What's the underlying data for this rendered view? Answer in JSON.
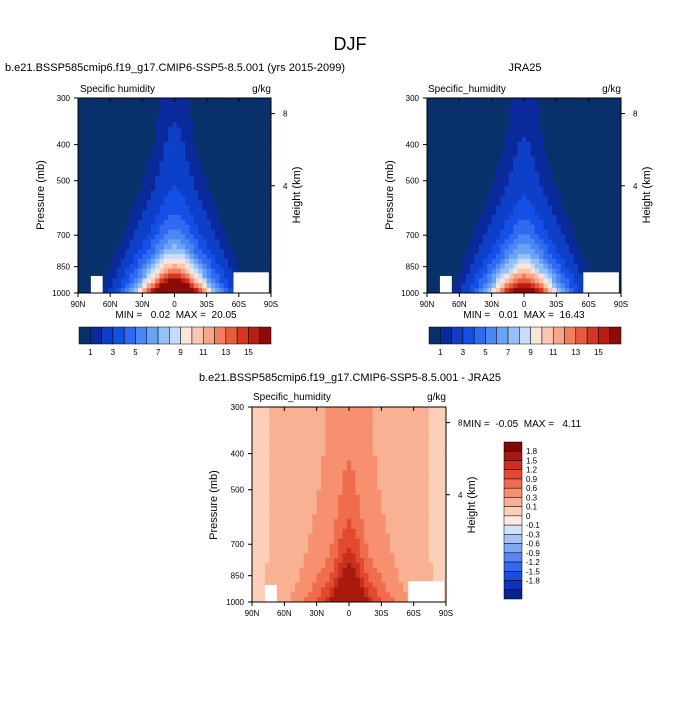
{
  "figure": {
    "title": "DJF"
  },
  "palettes": {
    "humidity": [
      "#08306b",
      "#0a2a9c",
      "#0d3fc8",
      "#1550e6",
      "#2f6af0",
      "#4a86f4",
      "#6aa2f6",
      "#95c0f8",
      "#c7dcfa",
      "#fbe4d8",
      "#f9c7b2",
      "#f7a688",
      "#f2805e",
      "#ea5a3c",
      "#d63621",
      "#b81e12",
      "#8c0b06"
    ],
    "difference": [
      "#08238b",
      "#0d33b8",
      "#1a4ddf",
      "#3468f0",
      "#5687f3",
      "#7ea7f6",
      "#a7c4f8",
      "#d4e3fb",
      "#fde9dd",
      "#fbcfb8",
      "#f9b193",
      "#f6906f",
      "#f06c4d",
      "#e2492f",
      "#c9301d",
      "#a81a10",
      "#7d0804"
    ]
  },
  "chart_data": [
    {
      "type": "heatmap",
      "title": "b.e21.BSSP585cmip6.f19_g17.CMIP6-SSP5-8.5.001 (yrs 2015-2099)",
      "variable_label": "Specific humidity",
      "units": "g/kg",
      "ylabel": "Pressure (mb)",
      "y2label": "Height (km)",
      "x_ticks": [
        "90N",
        "60N",
        "30N",
        "0",
        "30S",
        "60S",
        "90S"
      ],
      "y_ticks": [
        "300",
        "400",
        "500",
        "700",
        "850",
        "1000"
      ],
      "y2_ticks": [
        "8",
        "4"
      ],
      "x_range": [
        90,
        -90
      ],
      "y_range_mb": [
        1000,
        300
      ],
      "stats": "MIN =   0.02  MAX =  20.05",
      "min": 0.02,
      "max": 20.05,
      "field": {
        "peak": 20.05,
        "peak_lat": 0,
        "surface_width_deg": 36,
        "pressure_scale_mb": 160,
        "upper_branch_amp": 3.5,
        "upper_branch_width_deg": 16
      },
      "colorbar": {
        "labels": [
          "1",
          "3",
          "5",
          "7",
          "9",
          "11",
          "13",
          "15"
        ],
        "levels": [
          0.5,
          1,
          2,
          3,
          4,
          5,
          6,
          7,
          8,
          9,
          10,
          11,
          12,
          13,
          14,
          15
        ]
      }
    },
    {
      "type": "heatmap",
      "title": "",
      "variable_label": "Specific_humidity",
      "units": "g/kg",
      "ylabel": "Pressure (mb)",
      "y2label": "Height (km)",
      "x_ticks": [
        "90N",
        "60N",
        "30N",
        "0",
        "30S",
        "60S",
        "90S"
      ],
      "y_ticks": [
        "300",
        "400",
        "500",
        "700",
        "850",
        "1000"
      ],
      "y2_ticks": [
        "8",
        "4"
      ],
      "x_range": [
        90,
        -90
      ],
      "y_range_mb": [
        1000,
        300
      ],
      "subtitle": "JRA25",
      "stats": "MIN =   0.01  MAX =  16.43",
      "min": 0.01,
      "max": 16.43,
      "field": {
        "peak": 16.43,
        "peak_lat": 0,
        "surface_width_deg": 36,
        "pressure_scale_mb": 170,
        "upper_branch_amp": 2.5,
        "upper_branch_width_deg": 15
      },
      "colorbar": {
        "labels": [
          "1",
          "3",
          "5",
          "7",
          "9",
          "11",
          "13",
          "15"
        ],
        "levels": [
          0.5,
          1,
          2,
          3,
          4,
          5,
          6,
          7,
          8,
          9,
          10,
          11,
          12,
          13,
          14,
          15
        ]
      }
    },
    {
      "type": "heatmap",
      "title": "b.e21.BSSP585cmip6.f19_g17.CMIP6-SSP5-8.5.001 - JRA25",
      "variable_label": "Specific_humidity",
      "units": "g/kg",
      "ylabel": "Pressure (mb)",
      "y2label": "Height (km)",
      "x_ticks": [
        "90N",
        "60N",
        "30N",
        "0",
        "30S",
        "60S",
        "90S"
      ],
      "y_ticks": [
        "300",
        "400",
        "500",
        "700",
        "850",
        "1000"
      ],
      "y2_ticks": [
        "8",
        "4"
      ],
      "x_range": [
        90,
        -90
      ],
      "y_range_mb": [
        1000,
        300
      ],
      "stats": "MIN =  -0.05  MAX =   4.11",
      "min": -0.05,
      "max": 4.11,
      "field": {
        "peak": 4.11,
        "peak_lat": 0,
        "surface_width_deg": 40,
        "pressure_scale_mb": 200,
        "upper_branch_amp": 1.0,
        "upper_branch_width_deg": 12
      },
      "colorbar": {
        "labels": [
          "1.8",
          "1.5",
          "1.2",
          "0.9",
          "0.6",
          "0.3",
          "0.1",
          "0",
          "-0.1",
          "-0.3",
          "-0.6",
          "-0.9",
          "-1.2",
          "-1.5",
          "-1.8"
        ],
        "levels": [
          -1.8,
          -1.5,
          -1.2,
          -0.9,
          -0.6,
          -0.3,
          -0.1,
          0,
          0.1,
          0.3,
          0.6,
          0.9,
          1.2,
          1.5,
          1.8
        ]
      }
    }
  ]
}
